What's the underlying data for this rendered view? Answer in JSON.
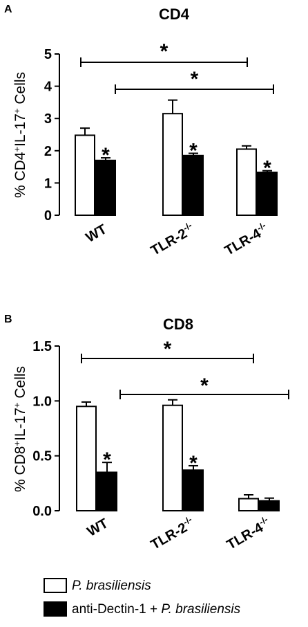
{
  "chart_data": [
    {
      "type": "bar",
      "panel_label": "A",
      "title": "CD4",
      "ylabel": "% CD4+IL-17+ Cells",
      "ylabel_parts": {
        "pre": "% CD4",
        "sup1": "+",
        "mid": "IL-17",
        "sup2": "+",
        "post": " Cells"
      },
      "ylim": [
        0,
        5
      ],
      "yticks": [
        "0",
        "1",
        "2",
        "3",
        "4",
        "5"
      ],
      "categories": [
        {
          "base": "WT",
          "sup": ""
        },
        {
          "base": "TLR-2",
          "sup": "-/-"
        },
        {
          "base": "TLR-4",
          "sup": "-/-"
        }
      ],
      "series": [
        {
          "name": "P. brasiliensis",
          "color": "#ffffff",
          "values": [
            2.48,
            3.15,
            2.05
          ],
          "errors": [
            0.22,
            0.42,
            0.1
          ],
          "stars": [
            false,
            false,
            false
          ]
        },
        {
          "name": "anti-Dectin-1 + P. brasiliensis",
          "color": "#000000",
          "values": [
            1.7,
            1.85,
            1.33
          ],
          "errors": [
            0.08,
            0.07,
            0.05
          ],
          "stars": [
            true,
            true,
            true
          ]
        }
      ],
      "brackets": [
        {
          "from_category": 0,
          "to_category": 2,
          "level": 4.75,
          "label": "*"
        },
        {
          "from_category": 1,
          "to_category": 2,
          "level": 3.95,
          "label": "*"
        }
      ]
    },
    {
      "type": "bar",
      "panel_label": "B",
      "title": "CD8",
      "ylabel": "% CD8+IL-17+ Cells",
      "ylabel_parts": {
        "pre": "% CD8",
        "sup1": "+",
        "mid": "IL-17",
        "sup2": "+",
        "post": " Cells"
      },
      "ylim": [
        0,
        1.5
      ],
      "yticks": [
        "0.0",
        "0.5",
        "1.0",
        "1.5"
      ],
      "categories": [
        {
          "base": "WT",
          "sup": ""
        },
        {
          "base": "TLR-2",
          "sup": "-/-"
        },
        {
          "base": "TLR-4",
          "sup": "-/-"
        }
      ],
      "series": [
        {
          "name": "P. brasiliensis",
          "color": "#ffffff",
          "values": [
            0.95,
            0.96,
            0.11
          ],
          "errors": [
            0.04,
            0.05,
            0.035
          ],
          "stars": [
            false,
            false,
            false
          ]
        },
        {
          "name": "anti-Dectin-1 + P. brasiliensis",
          "color": "#000000",
          "values": [
            0.35,
            0.37,
            0.09
          ],
          "errors": [
            0.09,
            0.04,
            0.025
          ],
          "stars": [
            true,
            true,
            false
          ]
        }
      ],
      "brackets": [
        {
          "from_category": 0,
          "to_category": 2,
          "level": 1.32,
          "label": "*"
        },
        {
          "from_category": 1,
          "to_category": 2,
          "level": 1.15,
          "label": "*"
        }
      ]
    }
  ],
  "legend": {
    "position": "bottom",
    "items": [
      {
        "color": "#ffffff",
        "parts": [
          {
            "text": "P. brasiliensis",
            "italic": true
          }
        ]
      },
      {
        "color": "#000000",
        "parts": [
          {
            "text": "anti-Dectin-1 + ",
            "italic": false
          },
          {
            "text": "P. brasiliensis",
            "italic": true
          }
        ]
      }
    ]
  }
}
